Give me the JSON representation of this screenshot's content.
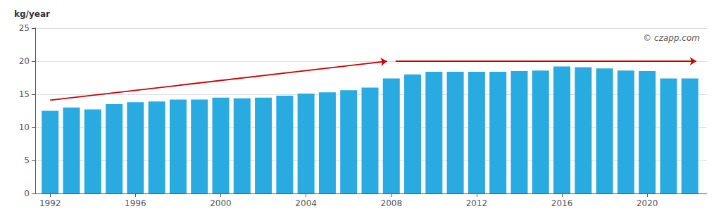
{
  "chart_data": {
    "type": "bar",
    "ylabel": "kg/year",
    "x": [
      1992,
      1993,
      1994,
      1995,
      1996,
      1997,
      1998,
      1999,
      2000,
      2001,
      2002,
      2003,
      2004,
      2005,
      2006,
      2007,
      2008,
      2009,
      2010,
      2011,
      2012,
      2013,
      2014,
      2015,
      2016,
      2017,
      2018,
      2019,
      2020,
      2021,
      2022
    ],
    "values": [
      12.5,
      13.0,
      12.7,
      13.5,
      13.8,
      13.9,
      14.2,
      14.2,
      14.5,
      14.4,
      14.5,
      14.8,
      15.1,
      15.3,
      15.6,
      16.0,
      17.4,
      18.0,
      18.4,
      18.4,
      18.4,
      18.4,
      18.5,
      18.6,
      19.2,
      19.1,
      18.9,
      18.6,
      18.5,
      17.4,
      17.4
    ],
    "color": "#29abe2",
    "xlim": [
      1991.3,
      2022.8
    ],
    "xticks": [
      1992,
      1996,
      2000,
      2004,
      2008,
      2012,
      2016,
      2020
    ],
    "ylim": [
      0,
      25
    ],
    "yticks": [
      0,
      5,
      10,
      15,
      20,
      25
    ],
    "grid": true,
    "annotations": [
      {
        "type": "arrow",
        "x": [
          1992.0,
          2007.8
        ],
        "y": [
          14.1,
          20.0
        ],
        "color": "#cc0000"
      },
      {
        "type": "arrow",
        "x": [
          2008.2,
          2022.3
        ],
        "y": [
          20.0,
          20.0
        ],
        "color": "#cc0000"
      },
      {
        "type": "text",
        "text": "© czapp.com"
      }
    ]
  }
}
